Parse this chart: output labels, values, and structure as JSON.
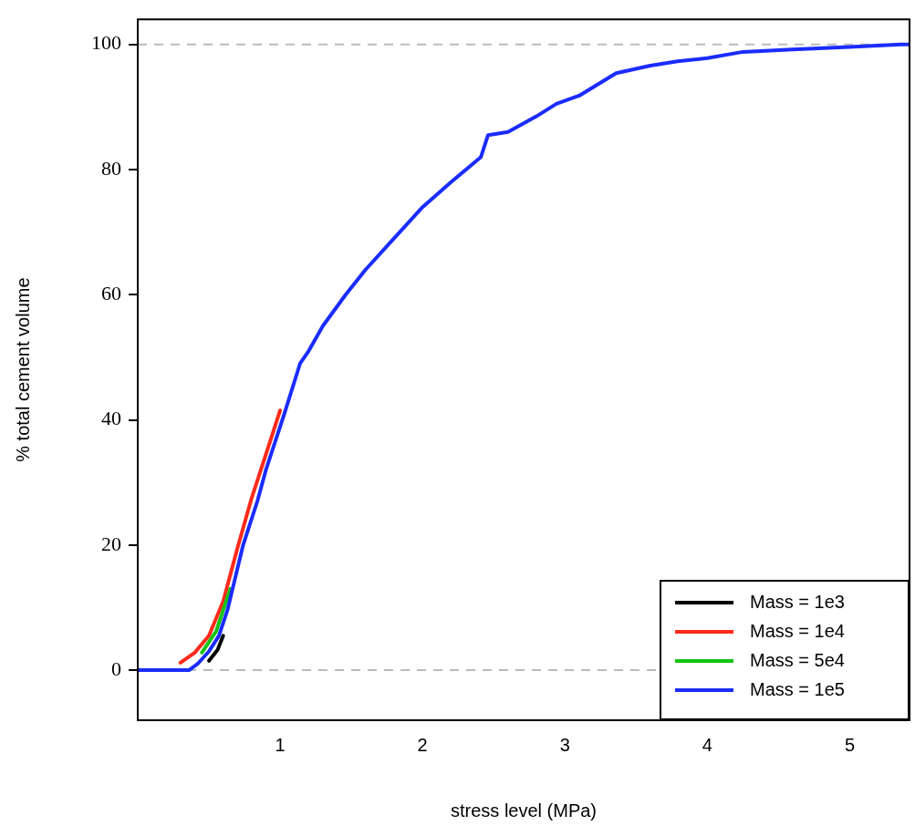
{
  "chart_data": {
    "type": "line",
    "xlabel": "stress level (MPa)",
    "ylabel": "% total cement volume",
    "xlim": [
      0,
      5.42
    ],
    "xticks": [
      1,
      2,
      3,
      4,
      5
    ],
    "ylim": [
      -8,
      104
    ],
    "yticks": [
      0,
      20,
      40,
      60,
      80,
      100
    ],
    "grid": false,
    "legend": "bottom right",
    "marker": "none",
    "line_style": "solid",
    "ref_lines": [
      {
        "axis": "y",
        "value": 0,
        "color": "#bbbbbb",
        "line_style": "dashed"
      },
      {
        "axis": "y",
        "value": 100,
        "color": "#bbbbbb",
        "line_style": "dashed"
      }
    ],
    "series": [
      {
        "name": "Mass = 1e3",
        "color": "#000000",
        "x": [
          0.5,
          0.56,
          0.6
        ],
        "values": [
          1.5,
          3.2,
          5.5
        ]
      },
      {
        "name": "Mass = 1e4",
        "color": "#ff2a1a",
        "x": [
          0.3,
          0.4,
          0.5,
          0.6,
          0.7,
          0.8,
          0.9,
          1.0
        ],
        "values": [
          1.2,
          2.8,
          5.5,
          11,
          19.5,
          27.5,
          34.5,
          41.5
        ]
      },
      {
        "name": "Mass = 5e4",
        "color": "#16c416",
        "x": [
          0.45,
          0.55,
          0.65
        ],
        "values": [
          2.8,
          6.2,
          13
        ]
      },
      {
        "name": "Mass = 1e5",
        "color": "#1a2cff",
        "x": [
          0,
          0.36,
          0.42,
          0.5,
          0.57,
          0.63,
          0.74,
          0.84,
          0.9,
          1.03,
          1.14,
          1.2,
          1.3,
          1.46,
          1.6,
          1.8,
          2.0,
          2.2,
          2.41,
          2.46,
          2.6,
          2.8,
          2.94,
          3.1,
          3.36,
          3.6,
          3.79,
          4.0,
          4.25,
          4.6,
          5.0,
          5.36,
          5.42
        ],
        "values": [
          0,
          0,
          1,
          3,
          5.5,
          9.6,
          20,
          27,
          32,
          41,
          49,
          51,
          55,
          60,
          64,
          69,
          74,
          78,
          82,
          85.5,
          86,
          88.5,
          90.5,
          91.8,
          95.4,
          96.6,
          97.3,
          97.8,
          98.8,
          99.2,
          99.6,
          100,
          100
        ]
      }
    ]
  }
}
